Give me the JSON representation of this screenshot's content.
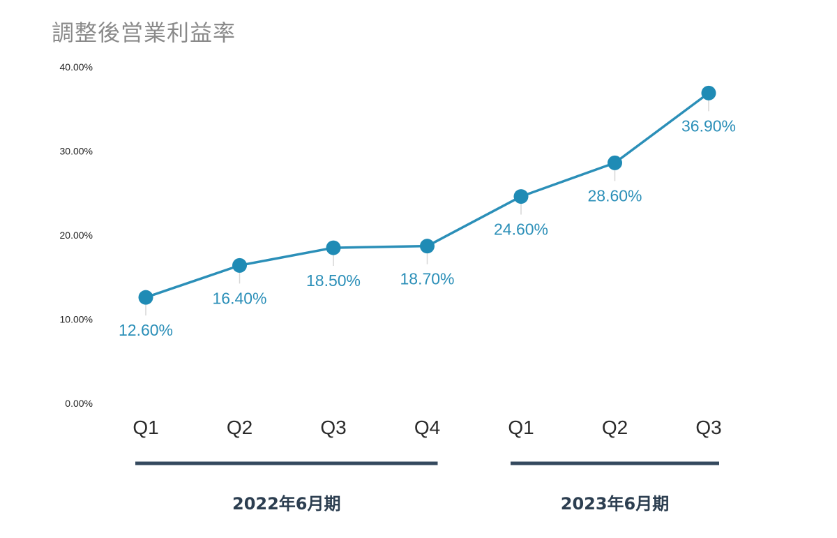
{
  "title": "調整後営業利益率",
  "colors": {
    "series": "#2b8fb8",
    "marker": "#1f8bb5",
    "group_bar": "#34495e",
    "title": "#8a8a8a",
    "leader": "#d6d6d6"
  },
  "chart_data": {
    "type": "line",
    "title": "調整後営業利益率",
    "categories": [
      "Q1",
      "Q2",
      "Q3",
      "Q4",
      "Q1",
      "Q2",
      "Q3"
    ],
    "values": [
      12.6,
      16.4,
      18.5,
      18.7,
      24.6,
      28.6,
      36.9
    ],
    "data_labels": [
      "12.60%",
      "16.40%",
      "18.50%",
      "18.70%",
      "24.60%",
      "28.60%",
      "36.90%"
    ],
    "ylim": [
      0,
      40
    ],
    "yticks": [
      0,
      10,
      20,
      30,
      40
    ],
    "ytick_labels": [
      "0.00%",
      "10.00%",
      "20.00%",
      "30.00%",
      "40.00%"
    ],
    "grid": false,
    "legend": "none",
    "groups": [
      {
        "label": "2022年6月期",
        "start": 0,
        "end": 3
      },
      {
        "label": "2023年6月期",
        "start": 4,
        "end": 6
      }
    ]
  }
}
